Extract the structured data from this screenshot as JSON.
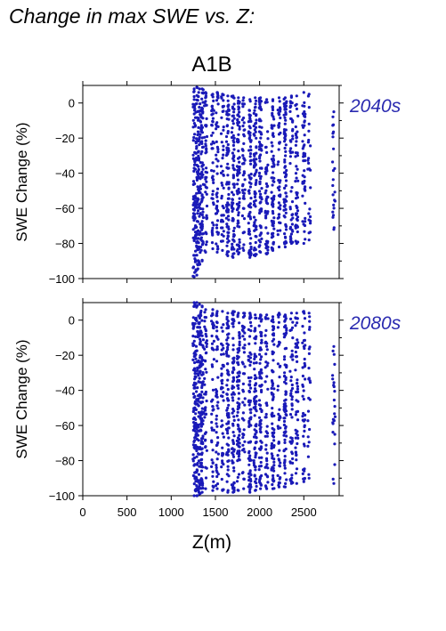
{
  "figure": {
    "heading": "Change in max SWE vs. Z:",
    "scenario": "A1B",
    "xlabel": "Z(m)",
    "point_color": "#1a1ab8",
    "label_color": "#2a2ab0"
  },
  "chart_data": [
    {
      "type": "scatter",
      "title": "A1B",
      "period": "2040s",
      "xlabel": "",
      "ylabel": "SWE Change (%)",
      "xlim": [
        0,
        2900
      ],
      "ylim": [
        -100,
        10
      ],
      "xticks": [
        0,
        500,
        1000,
        1500,
        2000,
        2500
      ],
      "yticks": [
        0,
        -20,
        -40,
        -60,
        -80,
        -100
      ],
      "xtick_labels_shown": false,
      "series": [
        {
          "columns": [
            {
              "x": 1260,
              "ymin": -99,
              "ymax": 8,
              "density": "high"
            },
            {
              "x": 1290,
              "ymin": -98,
              "ymax": 9,
              "density": "high"
            },
            {
              "x": 1320,
              "ymin": -92,
              "ymax": 8,
              "density": "high"
            },
            {
              "x": 1350,
              "ymin": -90,
              "ymax": 8,
              "density": "high"
            },
            {
              "x": 1390,
              "ymin": -85,
              "ymax": 6,
              "density": "medium"
            },
            {
              "x": 1470,
              "ymin": -83,
              "ymax": 5,
              "density": "medium"
            },
            {
              "x": 1520,
              "ymin": -85,
              "ymax": 6,
              "density": "medium"
            },
            {
              "x": 1580,
              "ymin": -84,
              "ymax": 5,
              "density": "medium"
            },
            {
              "x": 1640,
              "ymin": -87,
              "ymax": 4,
              "density": "high"
            },
            {
              "x": 1700,
              "ymin": -88,
              "ymax": 4,
              "density": "high"
            },
            {
              "x": 1760,
              "ymin": -86,
              "ymax": 3,
              "density": "high"
            },
            {
              "x": 1820,
              "ymin": -84,
              "ymax": 3,
              "density": "medium"
            },
            {
              "x": 1890,
              "ymin": -88,
              "ymax": 2,
              "density": "high"
            },
            {
              "x": 1950,
              "ymin": -87,
              "ymax": 3,
              "density": "high"
            },
            {
              "x": 2010,
              "ymin": -85,
              "ymax": 3,
              "density": "high"
            },
            {
              "x": 2080,
              "ymin": -86,
              "ymax": 2,
              "density": "medium"
            },
            {
              "x": 2150,
              "ymin": -84,
              "ymax": 2,
              "density": "high"
            },
            {
              "x": 2220,
              "ymin": -82,
              "ymax": 3,
              "density": "medium"
            },
            {
              "x": 2290,
              "ymin": -82,
              "ymax": 3,
              "density": "high"
            },
            {
              "x": 2360,
              "ymin": -80,
              "ymax": 4,
              "density": "medium"
            },
            {
              "x": 2420,
              "ymin": -80,
              "ymax": 4,
              "density": "medium"
            },
            {
              "x": 2500,
              "ymin": -80,
              "ymax": 6,
              "density": "medium"
            },
            {
              "x": 2560,
              "ymin": -78,
              "ymax": 5,
              "density": "low"
            },
            {
              "x": 2840,
              "ymin": -72,
              "ymax": -5,
              "density": "low"
            }
          ]
        }
      ]
    },
    {
      "type": "scatter",
      "title": "",
      "period": "2080s",
      "xlabel": "Z(m)",
      "ylabel": "SWE Change (%)",
      "xlim": [
        0,
        2900
      ],
      "ylim": [
        -100,
        10
      ],
      "xticks": [
        0,
        500,
        1000,
        1500,
        2000,
        2500
      ],
      "yticks": [
        0,
        -20,
        -40,
        -60,
        -80,
        -100
      ],
      "xtick_labels_shown": true,
      "series": [
        {
          "columns": [
            {
              "x": 1260,
              "ymin": -100,
              "ymax": 10,
              "density": "high"
            },
            {
              "x": 1290,
              "ymin": -100,
              "ymax": 10,
              "density": "high"
            },
            {
              "x": 1320,
              "ymin": -99,
              "ymax": 9,
              "density": "high"
            },
            {
              "x": 1350,
              "ymin": -98,
              "ymax": 8,
              "density": "high"
            },
            {
              "x": 1390,
              "ymin": -96,
              "ymax": 6,
              "density": "medium"
            },
            {
              "x": 1470,
              "ymin": -97,
              "ymax": 6,
              "density": "medium"
            },
            {
              "x": 1520,
              "ymin": -96,
              "ymax": 5,
              "density": "medium"
            },
            {
              "x": 1580,
              "ymin": -97,
              "ymax": 5,
              "density": "medium"
            },
            {
              "x": 1640,
              "ymin": -98,
              "ymax": 4,
              "density": "high"
            },
            {
              "x": 1700,
              "ymin": -98,
              "ymax": 5,
              "density": "high"
            },
            {
              "x": 1760,
              "ymin": -97,
              "ymax": 4,
              "density": "high"
            },
            {
              "x": 1820,
              "ymin": -96,
              "ymax": 4,
              "density": "medium"
            },
            {
              "x": 1890,
              "ymin": -98,
              "ymax": 4,
              "density": "high"
            },
            {
              "x": 1950,
              "ymin": -97,
              "ymax": 3,
              "density": "high"
            },
            {
              "x": 2010,
              "ymin": -96,
              "ymax": 3,
              "density": "high"
            },
            {
              "x": 2080,
              "ymin": -96,
              "ymax": 3,
              "density": "medium"
            },
            {
              "x": 2150,
              "ymin": -96,
              "ymax": 2,
              "density": "high"
            },
            {
              "x": 2220,
              "ymin": -95,
              "ymax": 4,
              "density": "medium"
            },
            {
              "x": 2290,
              "ymin": -95,
              "ymax": 3,
              "density": "high"
            },
            {
              "x": 2360,
              "ymin": -93,
              "ymax": 4,
              "density": "medium"
            },
            {
              "x": 2420,
              "ymin": -93,
              "ymax": 4,
              "density": "medium"
            },
            {
              "x": 2500,
              "ymin": -92,
              "ymax": 5,
              "density": "medium"
            },
            {
              "x": 2560,
              "ymin": -90,
              "ymax": 4,
              "density": "low"
            },
            {
              "x": 2840,
              "ymin": -93,
              "ymax": -15,
              "density": "low"
            }
          ]
        }
      ]
    }
  ]
}
